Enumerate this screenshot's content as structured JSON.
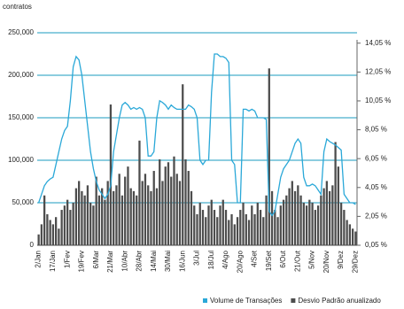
{
  "chart_data": {
    "type": "combo",
    "y_label": "contratos",
    "categories": [
      "2/Jan",
      null,
      null,
      null,
      null,
      "17/Jan",
      null,
      null,
      null,
      null,
      "1/Fev",
      null,
      null,
      null,
      null,
      "19/Fev",
      null,
      null,
      null,
      null,
      "6/Mar",
      null,
      null,
      null,
      null,
      "21/Mar",
      null,
      null,
      null,
      null,
      "10/Abr",
      null,
      null,
      null,
      null,
      "28/Abr",
      null,
      null,
      null,
      null,
      "14/Mai",
      null,
      null,
      null,
      null,
      "30/Mai",
      null,
      null,
      null,
      null,
      "16/Jun",
      null,
      null,
      null,
      null,
      "3/Jul",
      null,
      null,
      null,
      null,
      "18/Jul",
      null,
      null,
      null,
      null,
      "4/Ago",
      null,
      null,
      null,
      null,
      "20/Ago",
      null,
      null,
      null,
      null,
      "4/Set",
      null,
      null,
      null,
      null,
      "19/Set",
      null,
      null,
      null,
      null,
      "6/Out",
      null,
      null,
      null,
      null,
      "21/Out",
      null,
      null,
      null,
      null,
      "5/Nov",
      null,
      null,
      null,
      null,
      "20/Nov",
      null,
      null,
      null,
      null,
      "9/Dez",
      null,
      null,
      null,
      null,
      "29/Dez"
    ],
    "series": [
      {
        "name": "Volume de Transações",
        "type": "line",
        "color": "#2aa8d8",
        "axis": "y",
        "values": [
          50000,
          60000,
          70000,
          75000,
          78000,
          80000,
          95000,
          110000,
          125000,
          135000,
          140000,
          170000,
          210000,
          222000,
          218000,
          200000,
          170000,
          140000,
          110000,
          90000,
          75000,
          65000,
          60000,
          55000,
          60000,
          70000,
          110000,
          130000,
          150000,
          165000,
          168000,
          165000,
          160000,
          162000,
          160000,
          162000,
          160000,
          150000,
          105000,
          105000,
          110000,
          150000,
          170000,
          168000,
          165000,
          160000,
          165000,
          162000,
          160000,
          160000,
          160000,
          160000,
          165000,
          163000,
          160000,
          150000,
          100000,
          95000,
          100000,
          100000,
          180000,
          225000,
          225000,
          222000,
          222000,
          220000,
          215000,
          100000,
          95000,
          50000,
          50000,
          160000,
          160000,
          158000,
          160000,
          158000,
          150000,
          150000,
          150000,
          148000,
          40000,
          35000,
          40000,
          60000,
          80000,
          90000,
          95000,
          100000,
          110000,
          120000,
          125000,
          120000,
          80000,
          70000,
          70000,
          72000,
          70000,
          65000,
          60000,
          110000,
          125000,
          122000,
          120000,
          118000,
          115000,
          112000,
          60000,
          55000,
          50000,
          50000,
          48000
        ]
      },
      {
        "name": "Desvio Padrão anualizado",
        "type": "bar",
        "color": "#4d4d4d",
        "axis": "y2",
        "values": [
          0.8,
          1.5,
          3.5,
          2.2,
          1.8,
          1.5,
          2.0,
          1.2,
          2.5,
          2.8,
          3.2,
          2.5,
          3.0,
          4.0,
          4.5,
          3.8,
          3.5,
          4.2,
          3.0,
          2.8,
          4.8,
          3.5,
          4.0,
          3.2,
          4.5,
          9.8,
          3.8,
          4.2,
          5.0,
          3.5,
          4.8,
          5.5,
          4.0,
          3.8,
          3.5,
          7.3,
          4.5,
          5.0,
          4.2,
          3.8,
          5.2,
          4.0,
          6.0,
          4.5,
          5.5,
          5.8,
          4.8,
          6.2,
          5.0,
          4.5,
          11.2,
          6.0,
          5.2,
          3.8,
          2.8,
          2.2,
          3.0,
          2.5,
          2.0,
          2.8,
          3.2,
          2.5,
          2.0,
          2.8,
          3.2,
          2.5,
          1.8,
          2.2,
          1.5,
          2.0,
          2.5,
          3.0,
          2.2,
          1.8,
          2.8,
          2.2,
          3.0,
          2.5,
          2.0,
          3.5,
          12.3,
          3.8,
          2.5,
          2.0,
          2.8,
          3.2,
          3.5,
          4.0,
          4.5,
          3.8,
          4.2,
          3.5,
          3.0,
          2.8,
          3.2,
          3.0,
          2.5,
          2.8,
          3.5,
          4.0,
          4.5,
          3.8,
          4.2,
          7.2,
          5.5,
          3.0,
          2.5,
          1.8,
          1.5,
          1.2,
          1.0
        ]
      }
    ],
    "ylim": [
      0,
      250000
    ],
    "yticks": [
      0,
      {
        "value": 50000,
        "label": "50,000"
      },
      {
        "value": 100000,
        "label": "100,000"
      },
      {
        "value": 150000,
        "label": "150,000"
      },
      {
        "value": 200000,
        "label": "200,000"
      },
      {
        "value": 250000,
        "label": "250,000"
      }
    ],
    "y2lim": [
      0.05,
      14.77
    ],
    "y2ticks": [
      {
        "value": 0.05,
        "label": "0,05 %"
      },
      {
        "value": 2.05,
        "label": "2,05 %"
      },
      {
        "value": 4.05,
        "label": "4,05 %"
      },
      {
        "value": 6.05,
        "label": "6,05 %"
      },
      {
        "value": 8.05,
        "label": "8,05 %"
      },
      {
        "value": 10.05,
        "label": "10,05 %"
      },
      {
        "value": 12.05,
        "label": "12,05 %"
      },
      {
        "value": 14.05,
        "label": "14,05 %"
      }
    ],
    "grid": true,
    "grid_color": "#1a9bbf",
    "legend": "bottom"
  }
}
